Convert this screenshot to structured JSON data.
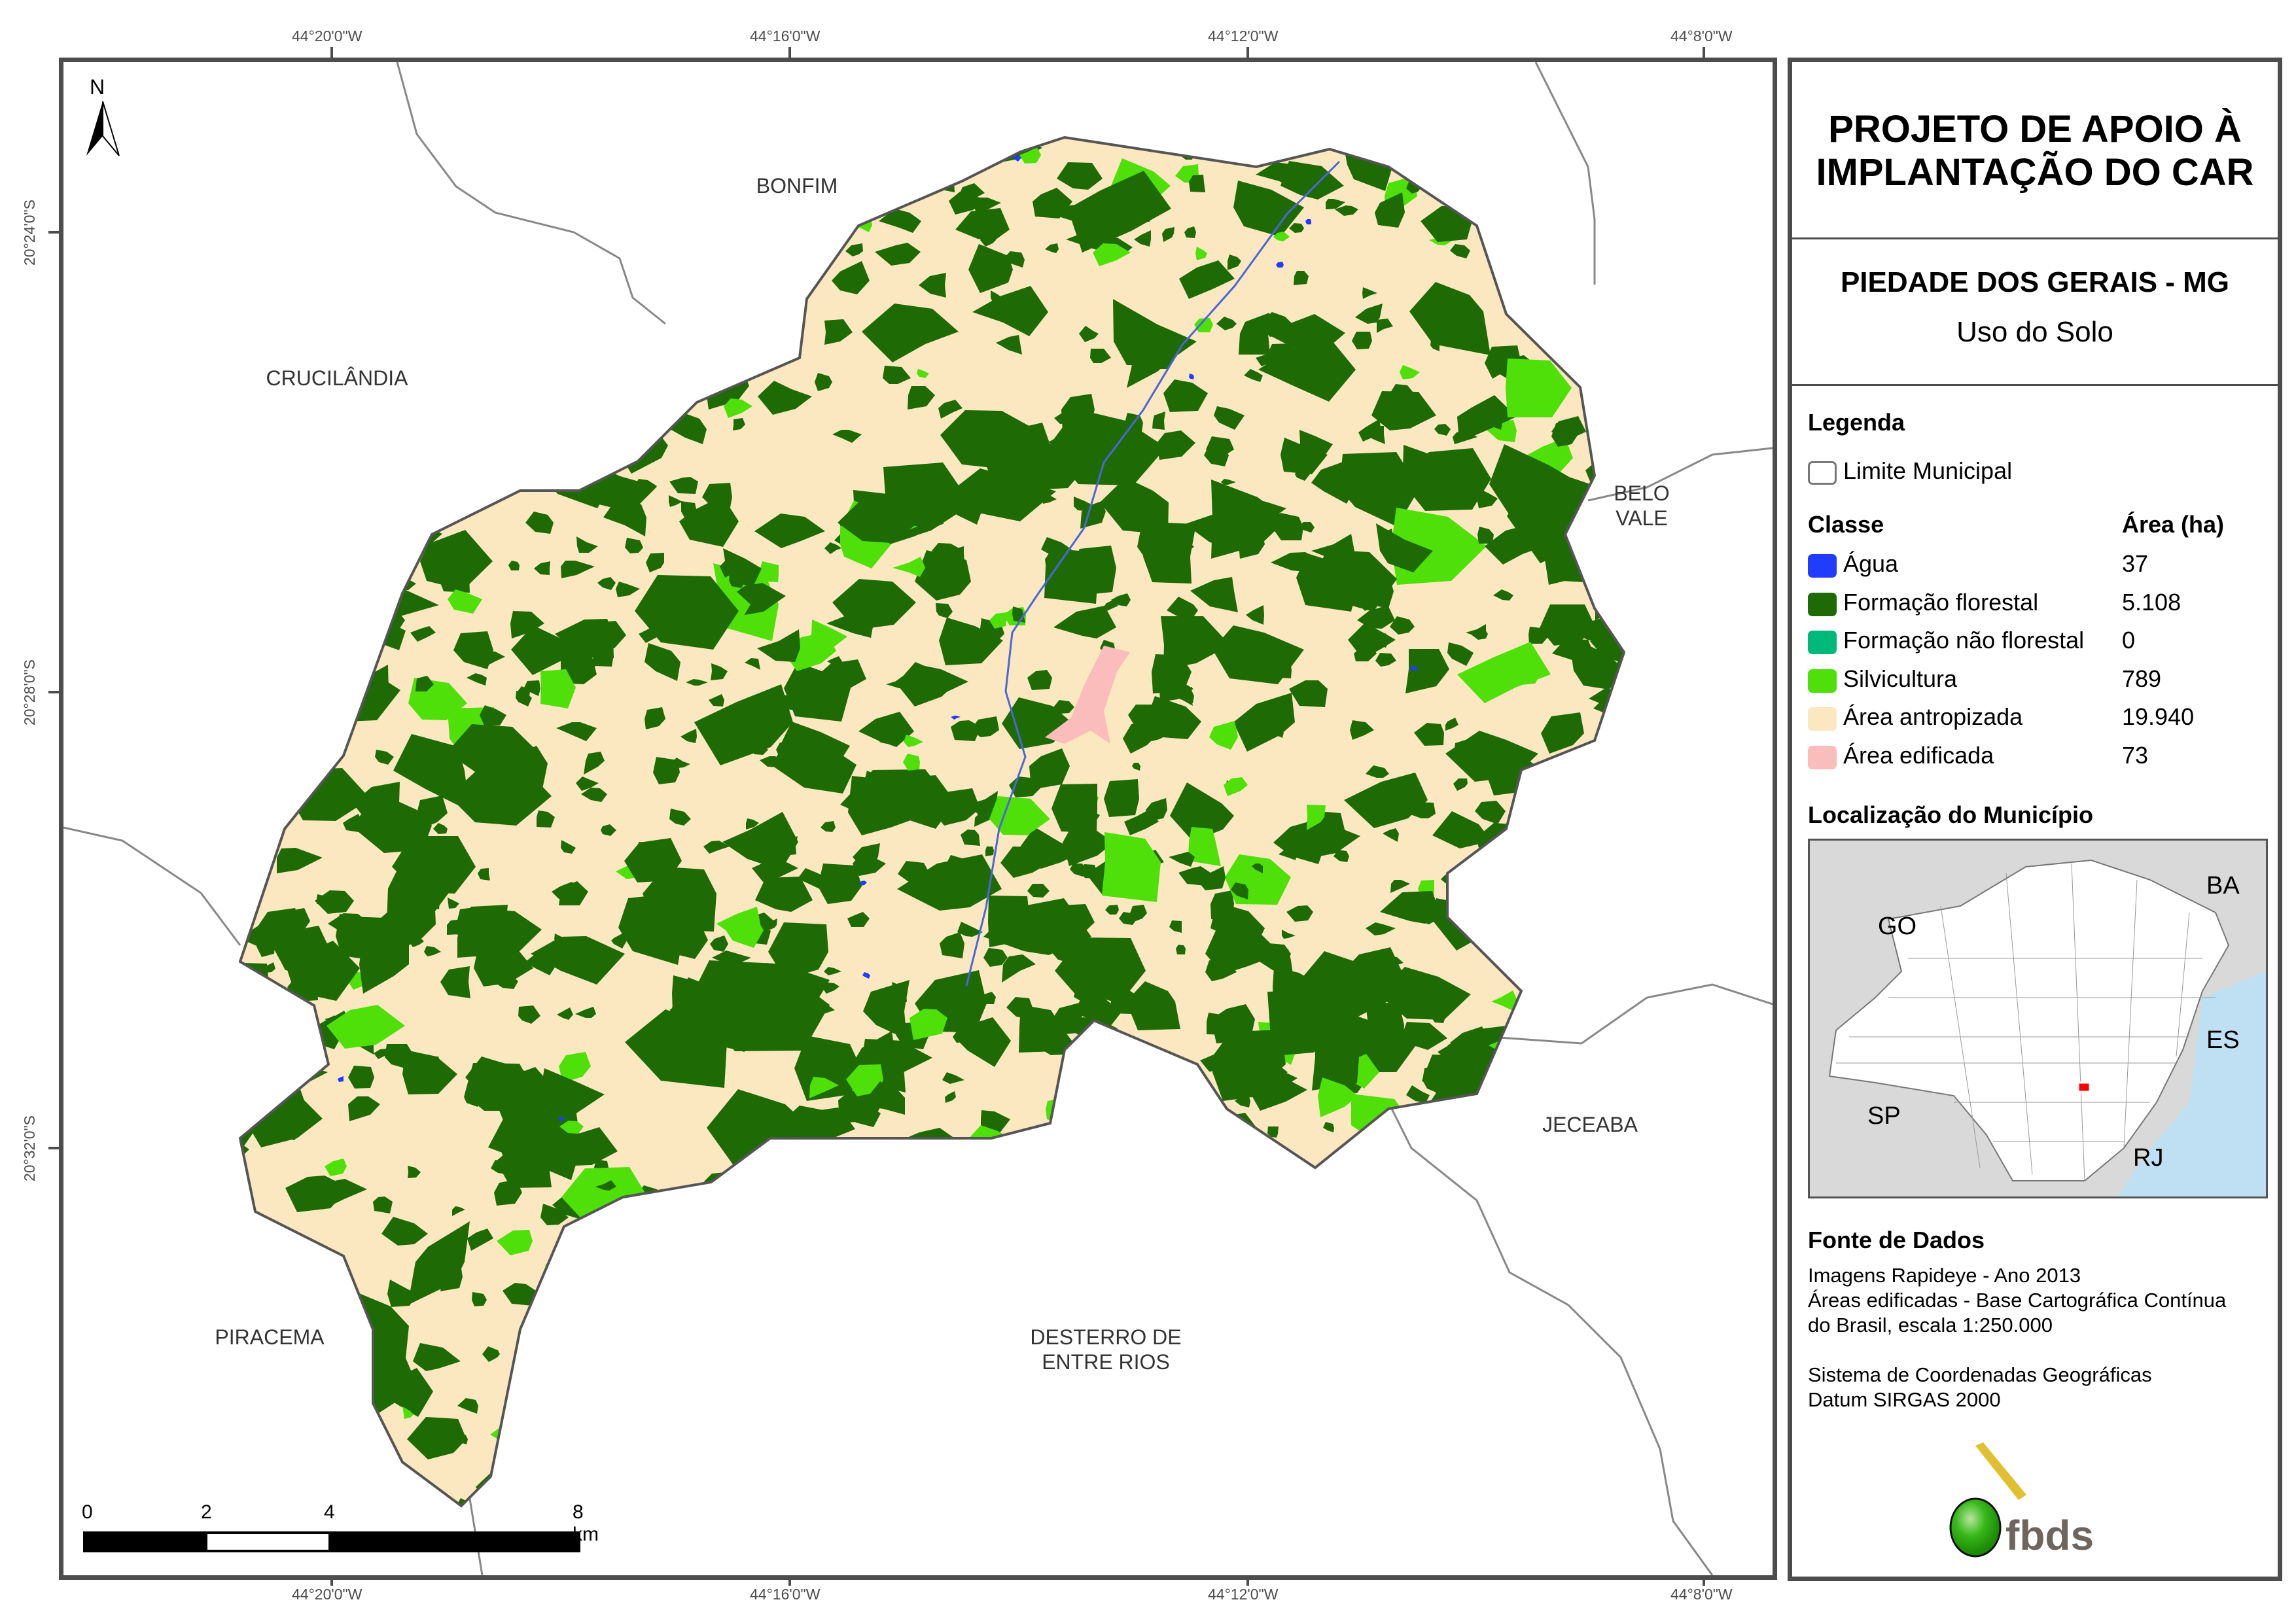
{
  "coordinates": {
    "longitudes": [
      "44°20'0\"W",
      "44°16'0\"W",
      "44°12'0\"W",
      "44°8'0\"W"
    ],
    "latitudes": [
      "20°24'0\"S",
      "20°28'0\"S",
      "20°32'0\"S"
    ]
  },
  "north_arrow": {
    "label": "N"
  },
  "neighbors": [
    {
      "name": "BONFIM"
    },
    {
      "name": "CRUCILÂNDIA"
    },
    {
      "name": "BELO VALE"
    },
    {
      "name": "JECEABA"
    },
    {
      "name": "DESTERRO DE ENTRE RIOS"
    },
    {
      "name": "PIRACEMA"
    }
  ],
  "scale_bar": {
    "labels": [
      "0",
      "2",
      "4",
      "8 km"
    ]
  },
  "panel": {
    "title_line1": "PROJETO DE APOIO À",
    "title_line2": "IMPLANTAÇÃO DO CAR",
    "municipality": "PIEDADE DOS GERAIS - MG",
    "theme": "Uso do Solo",
    "legend_heading": "Legenda",
    "boundary_label": "Limite Municipal",
    "class_header": "Classe",
    "area_header": "Área (ha)",
    "classes": [
      {
        "label": "Água",
        "area": "37",
        "color": "#1f3cff"
      },
      {
        "label": "Formação florestal",
        "area": "5.108",
        "color": "#1e6b05"
      },
      {
        "label": "Formação não florestal",
        "area": "0",
        "color": "#00b87a"
      },
      {
        "label": "Silvicultura",
        "area": "789",
        "color": "#4fe00a"
      },
      {
        "label": "Área antropizada",
        "area": "19.940",
        "color": "#fce8c0"
      },
      {
        "label": "Área edificada",
        "area": "73",
        "color": "#fbbcbc"
      }
    ],
    "location_heading": "Localização do Município",
    "inset_labels": [
      "GO",
      "BA",
      "ES",
      "SP",
      "RJ"
    ],
    "source_heading": "Fonte de Dados",
    "source_lines": [
      "Imagens Rapideye - Ano 2013",
      "Áreas edificadas - Base Cartográfica Contínua",
      "do Brasil, escala 1:250.000",
      "Sistema de Coordenadas Geográficas",
      "Datum SIRGAS 2000"
    ],
    "logo_text": "fbds"
  }
}
